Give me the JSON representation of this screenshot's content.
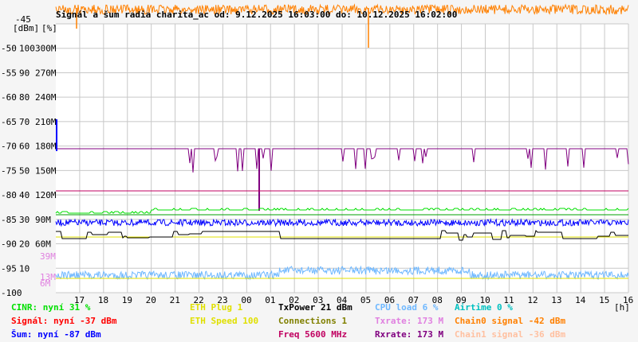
{
  "chart_data": {
    "type": "line",
    "title": "Signál a šum radia charita_ac od: 9.12.2025 16:03:00 do: 10.12.2025 16:02:00",
    "unit_label_left": "[dBm]",
    "unit_label_right": "[%]",
    "x_unit": "[h]",
    "x_ticks": [
      "17",
      "18",
      "19",
      "20",
      "21",
      "22",
      "23",
      "00",
      "01",
      "02",
      "03",
      "04",
      "05",
      "06",
      "07",
      "08",
      "09",
      "10",
      "11",
      "12",
      "13",
      "14",
      "15",
      "16"
    ],
    "y_ticks_dbm": [
      "-45",
      "-50",
      "-55",
      "-60",
      "-65",
      "-70",
      "-75",
      "-80",
      "-85",
      "-90",
      "-95",
      "-100"
    ],
    "y_ticks_pct": [
      "100",
      "90",
      "80",
      "70",
      "60",
      "50",
      "40",
      "30",
      "20",
      "10"
    ],
    "y_ticks_rate": [
      "300M",
      "270M",
      "240M",
      "210M",
      "180M",
      "150M",
      "120M",
      "90M",
      "60M"
    ],
    "y_ticks_small": [
      "39M",
      "13M",
      "6M"
    ],
    "ylim_dbm": [
      -100,
      -45
    ],
    "colors": {
      "cinr": "#00e000",
      "signal": "#ff0000",
      "noise": "#0000ff",
      "eth_plug": "#e0e000",
      "eth_speed": "#e0e000",
      "txpower": "#000000",
      "connections": "#808000",
      "freq": "#c00060",
      "cpu": "#6fb8ff",
      "airtime": "#00c0c0",
      "txrate": "#e080e0",
      "rxrate": "#800080",
      "chain0": "#ff8000",
      "chain1": "#ffc0a0"
    },
    "series": [
      {
        "name": "Chain0 signal",
        "approx_level_dbm": -42,
        "color_key": "chain0"
      },
      {
        "name": "Rxrate",
        "approx_level_mbit": 173,
        "color_key": "rxrate"
      },
      {
        "name": "CINR",
        "approx_level_pct": 31,
        "color_key": "cinr"
      },
      {
        "name": "Šum",
        "approx_level_dbm": -87,
        "color_key": "noise"
      },
      {
        "name": "TxPower",
        "approx_level": "black step line near -89..-91 dBm",
        "color_key": "txpower"
      },
      {
        "name": "CPU load",
        "approx_level_pct": 6,
        "color_key": "cpu"
      }
    ]
  },
  "legend": {
    "col1": [
      {
        "text": "CINR: nyní 31 %",
        "color": "#00e000"
      },
      {
        "text": "Signál: nyní -37 dBm",
        "color": "#ff0000"
      },
      {
        "text": "Šum: nyní -87 dBm",
        "color": "#0000ff"
      }
    ],
    "col2": [
      {
        "text": "ETH Plug 1",
        "color": "#e0e000"
      },
      {
        "text": "ETH Speed 100",
        "color": "#e0e000"
      }
    ],
    "col3": [
      {
        "text": "TxPower 21 dBm",
        "color": "#000000"
      },
      {
        "text": "Connections 1",
        "color": "#808000"
      },
      {
        "text": "Freq 5600 MHz",
        "color": "#c00060"
      }
    ],
    "col4": [
      {
        "text": "CPU load 6 %",
        "color": "#6fb8ff"
      },
      {
        "text": "Txrate: 173 M",
        "color": "#e080e0"
      },
      {
        "text": "Rxrate: 173 M",
        "color": "#800080"
      }
    ],
    "col5": [
      {
        "text": "Airtime 0 %",
        "color": "#00c0c0"
      },
      {
        "text": "Chain0 signal -42 dBm",
        "color": "#ff8000"
      },
      {
        "text": "Chain1 signal -36 dBm",
        "color": "#ffc0a0"
      }
    ]
  }
}
